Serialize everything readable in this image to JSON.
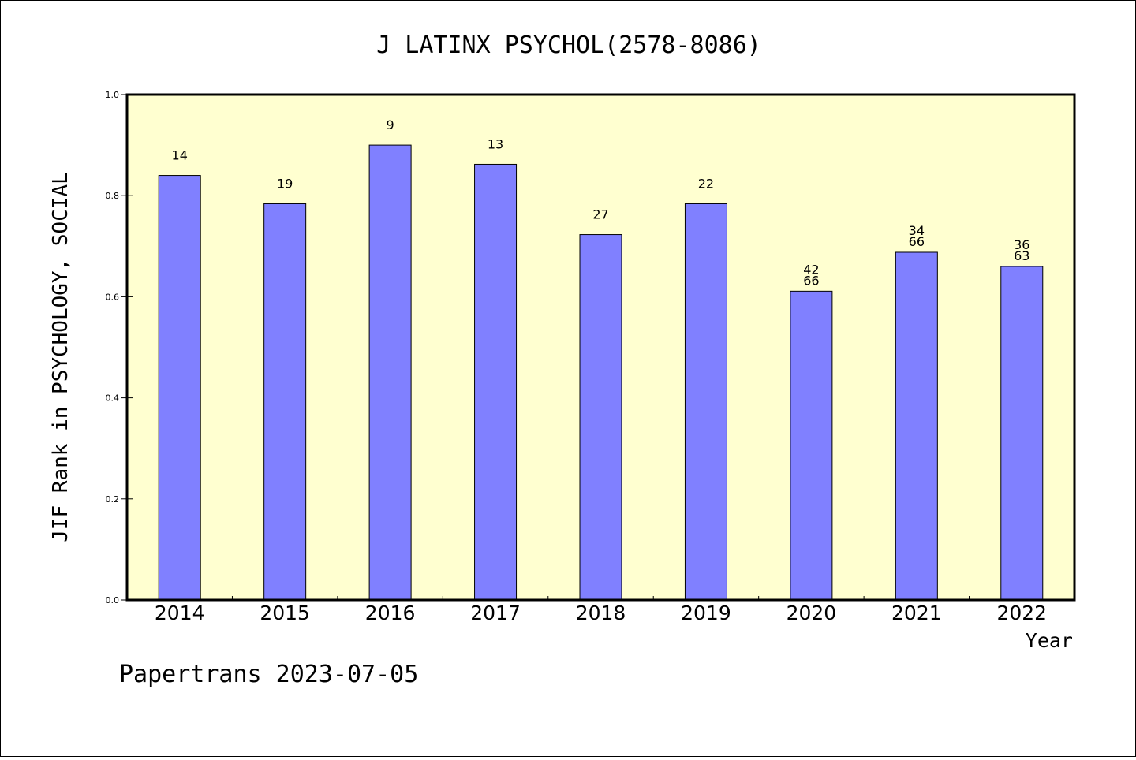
{
  "chart_data": {
    "type": "bar",
    "title": "J LATINX PSYCHOL(2578-8086)",
    "xlabel": "Year",
    "ylabel": "JIF Rank in PSYCHOLOGY, SOCIAL",
    "ylim": [
      0,
      1.0
    ],
    "yticks": [
      "0.0",
      "0.2",
      "0.4",
      "0.6",
      "0.8",
      "1.0"
    ],
    "categories": [
      "2014",
      "2015",
      "2016",
      "2017",
      "2018",
      "2019",
      "2020",
      "2021",
      "2022"
    ],
    "values": [
      0.84,
      0.784,
      0.9,
      0.862,
      0.723,
      0.784,
      0.611,
      0.688,
      0.66
    ],
    "labels": [
      [
        "14"
      ],
      [
        "19"
      ],
      [
        "9"
      ],
      [
        "13"
      ],
      [
        "27"
      ],
      [
        "22"
      ],
      [
        "42",
        "66"
      ],
      [
        "34",
        "66"
      ],
      [
        "36",
        "63"
      ]
    ],
    "grid": false,
    "colors": {
      "bar": "#8080ff",
      "plot_bg": "#ffffd0",
      "bar_stroke": "#000000"
    }
  },
  "footer": "Papertrans 2023-07-05"
}
